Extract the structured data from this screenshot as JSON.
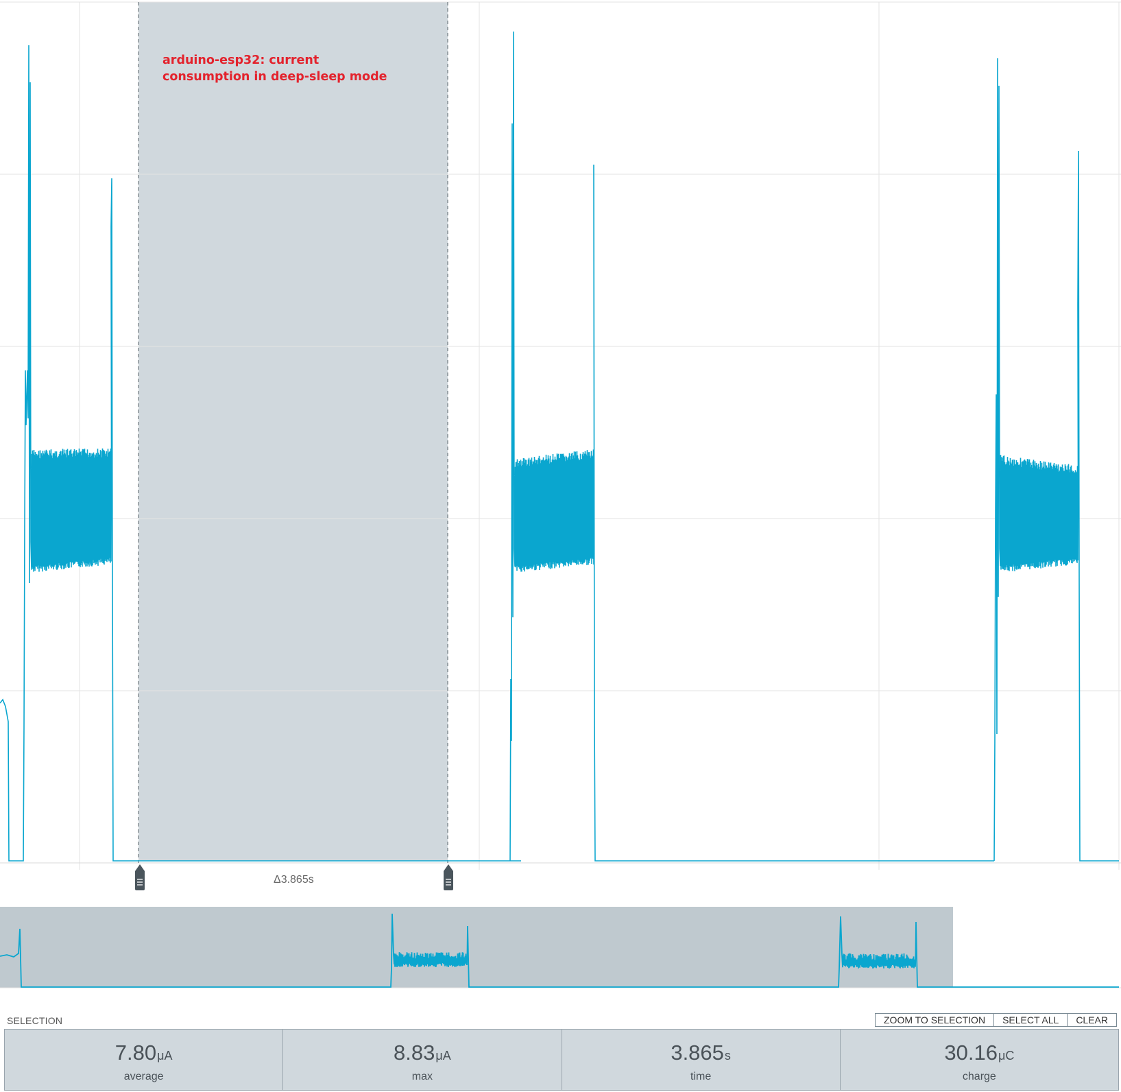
{
  "annotation": {
    "line1": "arduino-esp32: current",
    "line2": "consumption in deep-sleep mode"
  },
  "selection": {
    "delta_label": "Δ3.865s",
    "title": "SELECTION"
  },
  "buttons": {
    "zoom": "ZOOM TO SELECTION",
    "select_all": "SELECT ALL",
    "clear": "CLEAR"
  },
  "stats": [
    {
      "value": "7.80",
      "unit": "μA",
      "label": "average"
    },
    {
      "value": "8.83",
      "unit": "μA",
      "label": "max"
    },
    {
      "value": "3.865",
      "unit": "s",
      "label": "time"
    },
    {
      "value": "30.16",
      "unit": "μC",
      "label": "charge"
    }
  ],
  "colors": {
    "trace": "#0aa6cf",
    "selection_fill": "#d0d8dd",
    "minimap_fill": "#bfc9cf",
    "annotation": "#e3232d",
    "grid": "#e3e3e3"
  },
  "icons": {
    "marker": "drag-handle-icon"
  }
}
